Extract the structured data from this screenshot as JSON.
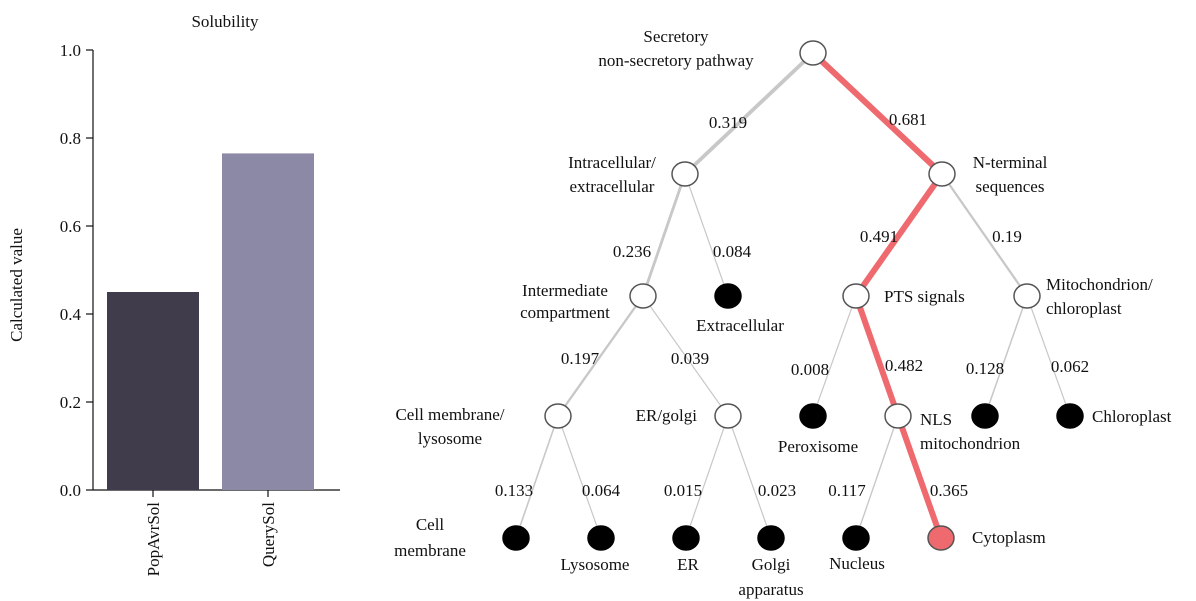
{
  "chart_data": [
    {
      "type": "bar",
      "title": "Solubility",
      "ylabel": "Calculated value",
      "xlabel": "",
      "categories": [
        "PopAvrSol",
        "QuerySol"
      ],
      "values": [
        0.45,
        0.765
      ],
      "ylim": [
        0,
        1.0
      ],
      "yticks": [
        "0.0",
        "0.2",
        "0.4",
        "0.6",
        "0.8",
        "1.0"
      ],
      "colors": [
        "#403c4c",
        "#8c89a6"
      ],
      "grid": false
    },
    {
      "type": "tree",
      "highlight_color": "#ef6a6f",
      "node_colors": {
        "internal": "#ffffff",
        "leaf": "#000000",
        "predicted": "#ef6a6f"
      },
      "nodes": [
        {
          "id": "root",
          "kind": "internal",
          "label_lines": [
            "Secretory",
            "non-secretory pathway"
          ]
        },
        {
          "id": "intra",
          "kind": "internal",
          "label_lines": [
            "Intracellular/",
            "extracellular"
          ]
        },
        {
          "id": "nterm",
          "kind": "internal",
          "label_lines": [
            "N-terminal",
            "sequences"
          ]
        },
        {
          "id": "interm",
          "kind": "internal",
          "label_lines": [
            "Intermediate",
            "compartment"
          ]
        },
        {
          "id": "extra",
          "kind": "leaf",
          "label_lines": [
            "Extracellular"
          ]
        },
        {
          "id": "pts",
          "kind": "internal",
          "label_lines": [
            "PTS signals"
          ]
        },
        {
          "id": "mito",
          "kind": "internal",
          "label_lines": [
            "Mitochondrion/",
            "chloroplast"
          ]
        },
        {
          "id": "cellmem",
          "kind": "internal",
          "label_lines": [
            "Cell membrane/",
            "lysosome"
          ]
        },
        {
          "id": "ergolgi",
          "kind": "internal",
          "label_lines": [
            "ER/golgi"
          ]
        },
        {
          "id": "perox",
          "kind": "leaf",
          "label_lines": [
            "Peroxisome"
          ]
        },
        {
          "id": "nls",
          "kind": "internal",
          "label_lines": [
            "NLS",
            "mitochondrion"
          ]
        },
        {
          "id": "mitoleaf",
          "kind": "leaf",
          "label_lines": []
        },
        {
          "id": "chloro",
          "kind": "leaf",
          "label_lines": [
            "Chloroplast"
          ]
        },
        {
          "id": "cm_leaf",
          "kind": "leaf",
          "label_lines": [
            "Cell",
            "membrane"
          ]
        },
        {
          "id": "lyso",
          "kind": "leaf",
          "label_lines": [
            "Lysosome"
          ]
        },
        {
          "id": "er",
          "kind": "leaf",
          "label_lines": [
            "ER"
          ]
        },
        {
          "id": "golgi",
          "kind": "leaf",
          "label_lines": [
            "Golgi",
            "apparatus"
          ]
        },
        {
          "id": "nucleus",
          "kind": "leaf",
          "label_lines": [
            "Nucleus"
          ]
        },
        {
          "id": "cyto",
          "kind": "predicted",
          "label_lines": [
            "Cytoplasm"
          ]
        }
      ],
      "edges": [
        {
          "from": "root",
          "to": "intra",
          "value": "0.319",
          "highlight": false
        },
        {
          "from": "root",
          "to": "nterm",
          "value": "0.681",
          "highlight": true
        },
        {
          "from": "intra",
          "to": "interm",
          "value": "0.236",
          "highlight": false
        },
        {
          "from": "intra",
          "to": "extra",
          "value": "0.084",
          "highlight": false
        },
        {
          "from": "nterm",
          "to": "pts",
          "value": "0.491",
          "highlight": true
        },
        {
          "from": "nterm",
          "to": "mito",
          "value": "0.19",
          "highlight": false
        },
        {
          "from": "interm",
          "to": "cellmem",
          "value": "0.197",
          "highlight": false
        },
        {
          "from": "interm",
          "to": "ergolgi",
          "value": "0.039",
          "highlight": false
        },
        {
          "from": "pts",
          "to": "perox",
          "value": "0.008",
          "highlight": false
        },
        {
          "from": "pts",
          "to": "nls",
          "value": "0.482",
          "highlight": true
        },
        {
          "from": "mito",
          "to": "mitoleaf",
          "value": "0.128",
          "highlight": false
        },
        {
          "from": "mito",
          "to": "chloro",
          "value": "0.062",
          "highlight": false
        },
        {
          "from": "cellmem",
          "to": "cm_leaf",
          "value": "0.133",
          "highlight": false
        },
        {
          "from": "cellmem",
          "to": "lyso",
          "value": "0.064",
          "highlight": false
        },
        {
          "from": "ergolgi",
          "to": "er",
          "value": "0.015",
          "highlight": false
        },
        {
          "from": "ergolgi",
          "to": "golgi",
          "value": "0.023",
          "highlight": false
        },
        {
          "from": "nls",
          "to": "nucleus",
          "value": "0.117",
          "highlight": false
        },
        {
          "from": "nls",
          "to": "cyto",
          "value": "0.365",
          "highlight": true
        }
      ]
    }
  ]
}
